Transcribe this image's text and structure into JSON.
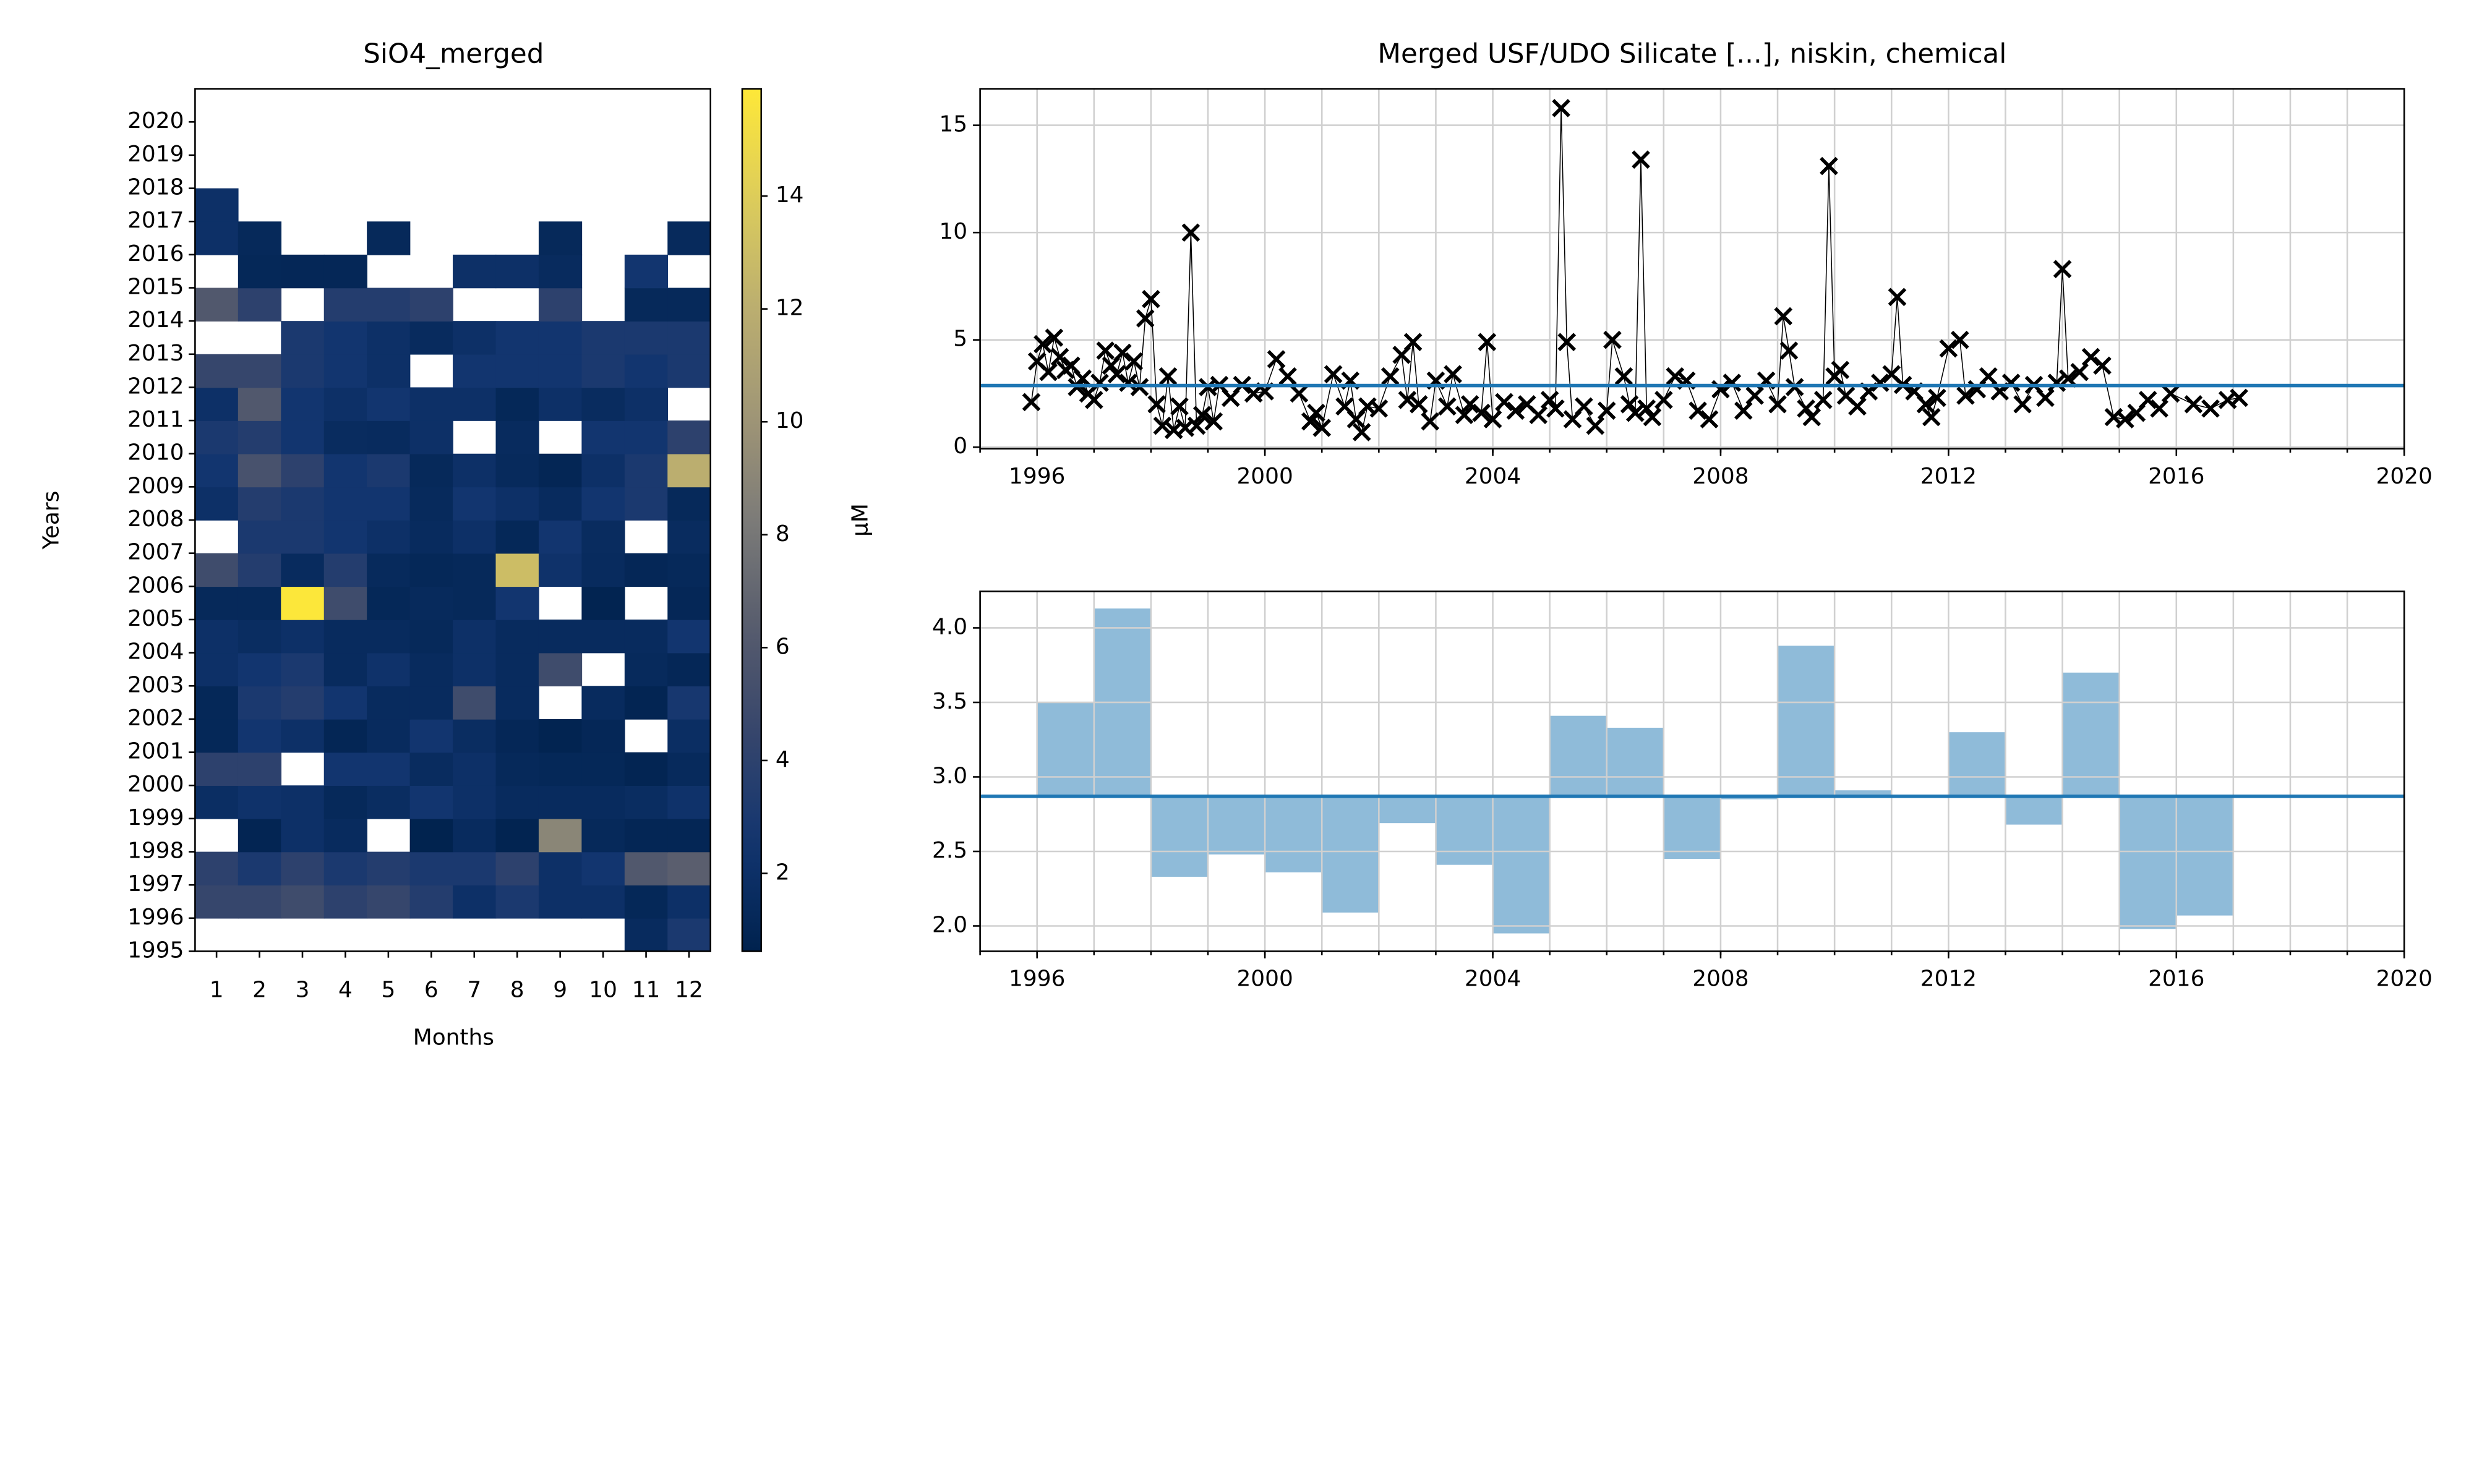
{
  "chart_data": [
    {
      "type": "heatmap",
      "title": "SiO4_merged",
      "xlabel": "Months",
      "ylabel": "Years",
      "colorbar_label": "µM",
      "colormap": "cividis",
      "x": [
        1,
        2,
        3,
        4,
        5,
        6,
        7,
        8,
        9,
        10,
        11,
        12
      ],
      "y": [
        1995,
        1996,
        1997,
        1998,
        1999,
        2000,
        2001,
        2002,
        2003,
        2004,
        2005,
        2006,
        2007,
        2008,
        2009,
        2010,
        2011,
        2012,
        2013,
        2014,
        2015,
        2016,
        2017,
        2018,
        2019,
        2020
      ],
      "values": [
        [
          null,
          null,
          null,
          null,
          null,
          null,
          null,
          null,
          null,
          null,
          1.5,
          3
        ],
        [
          4.5,
          4.5,
          5,
          4,
          4.5,
          3.5,
          2,
          3,
          2,
          2,
          1.2,
          2
        ],
        [
          4,
          3,
          4,
          3,
          3.5,
          3,
          3,
          4,
          2,
          2.5,
          6,
          6.5
        ],
        [
          null,
          0.9,
          2,
          1.5,
          null,
          0.7,
          1.5,
          0.8,
          9,
          1.3,
          1,
          1
        ],
        [
          1.8,
          2.2,
          2,
          1.3,
          1.7,
          2.5,
          2,
          1.5,
          1.5,
          1.5,
          1.7,
          2.2
        ],
        [
          4,
          4,
          null,
          2.5,
          2.5,
          1.6,
          2,
          1.3,
          1.2,
          1.2,
          0.9,
          1.4
        ],
        [
          1.2,
          2.5,
          2,
          1,
          1.5,
          2.5,
          1.7,
          1.1,
          0.8,
          1.1,
          null,
          1.8
        ],
        [
          1.2,
          3,
          3.5,
          2.5,
          1.5,
          1.5,
          5,
          1.5,
          null,
          1.5,
          0.9,
          2.8
        ],
        [
          2,
          2.5,
          3,
          1.5,
          2.2,
          1.5,
          2,
          1.5,
          5,
          null,
          1.4,
          1.1
        ],
        [
          2,
          1.7,
          2,
          1.5,
          1.5,
          1.3,
          2,
          1.5,
          1.5,
          1.5,
          1.5,
          2.5
        ],
        [
          1.3,
          1.3,
          15.8,
          5,
          1.2,
          1.4,
          1.3,
          2.5,
          null,
          0.8,
          null,
          1.1
        ],
        [
          5,
          3.5,
          1.5,
          3.5,
          1.4,
          1.2,
          1.3,
          13,
          2.2,
          1.5,
          1.1,
          1.3
        ],
        [
          null,
          3,
          3,
          2.5,
          2,
          1.5,
          2,
          1.2,
          2.5,
          1.6,
          null,
          1.6
        ],
        [
          2,
          3.5,
          3,
          2.5,
          2.5,
          1.4,
          2.5,
          2,
          1.5,
          2.5,
          3,
          1.3
        ],
        [
          2.5,
          5.5,
          4,
          2.5,
          3,
          1.3,
          2,
          1.4,
          1,
          2,
          3,
          12
        ],
        [
          3,
          3.5,
          2.5,
          1.6,
          1.5,
          2,
          null,
          1.5,
          null,
          2.5,
          2.5,
          4
        ],
        [
          2,
          6,
          2.5,
          2,
          2.5,
          2,
          2,
          1.2,
          2,
          1.6,
          2,
          null
        ],
        [
          4.5,
          4.5,
          3,
          2.5,
          2,
          null,
          2.5,
          2.5,
          2.5,
          3,
          2.5,
          3
        ],
        [
          null,
          null,
          3,
          2.5,
          2,
          1.5,
          2,
          2.5,
          2.5,
          3,
          3,
          3
        ],
        [
          6,
          4,
          null,
          3.5,
          3.5,
          4,
          null,
          null,
          4,
          null,
          1.3,
          1.3
        ],
        [
          null,
          1.2,
          1.1,
          1.1,
          null,
          null,
          2,
          2,
          1.5,
          null,
          2.5,
          null
        ],
        [
          2,
          1.3,
          null,
          null,
          1.3,
          null,
          null,
          null,
          1.3,
          null,
          null,
          1.4
        ],
        [
          2,
          null,
          null,
          null,
          null,
          null,
          null,
          null,
          null,
          null,
          null,
          null
        ],
        [
          null,
          null,
          null,
          null,
          null,
          null,
          null,
          null,
          null,
          null,
          null,
          null
        ],
        [
          null,
          null,
          null,
          null,
          null,
          null,
          null,
          null,
          null,
          null,
          null,
          null
        ],
        [
          null,
          null,
          null,
          null,
          null,
          null,
          null,
          null,
          null,
          null,
          null,
          null
        ]
      ],
      "xlim": [
        0.5,
        12.5
      ],
      "xticks": [
        1,
        2,
        3,
        4,
        5,
        6,
        7,
        8,
        9,
        10,
        11,
        12
      ],
      "ylim": [
        1995,
        2021
      ],
      "yticks": [
        1995,
        1996,
        1997,
        1998,
        1999,
        2000,
        2001,
        2002,
        2003,
        2004,
        2005,
        2006,
        2007,
        2008,
        2009,
        2010,
        2011,
        2012,
        2013,
        2014,
        2015,
        2016,
        2017,
        2018,
        2019,
        2020
      ],
      "clim": [
        0.62,
        15.9
      ],
      "cticks": [
        2,
        4,
        6,
        8,
        10,
        12,
        14
      ]
    },
    {
      "type": "line",
      "title": "Merged USF/UDO Silicate [...], niskin, chemical",
      "x": [
        1995.9,
        1996.0,
        1996.1,
        1996.2,
        1996.3,
        1996.4,
        1996.5,
        1996.6,
        1996.7,
        1996.8,
        1996.9,
        1997.0,
        1997.1,
        1997.2,
        1997.3,
        1997.4,
        1997.5,
        1997.6,
        1997.7,
        1997.8,
        1997.9,
        1998.0,
        1998.1,
        1998.2,
        1998.3,
        1998.4,
        1998.5,
        1998.6,
        1998.7,
        1998.8,
        1998.9,
        1999.0,
        1999.1,
        1999.2,
        1999.4,
        1999.6,
        1999.8,
        2000.0,
        2000.2,
        2000.4,
        2000.6,
        2000.8,
        2000.9,
        2001.0,
        2001.2,
        2001.4,
        2001.5,
        2001.6,
        2001.7,
        2001.8,
        2002.0,
        2002.2,
        2002.4,
        2002.5,
        2002.6,
        2002.7,
        2002.9,
        2003.0,
        2003.2,
        2003.3,
        2003.5,
        2003.6,
        2003.8,
        2003.9,
        2004.0,
        2004.2,
        2004.4,
        2004.6,
        2004.8,
        2005.0,
        2005.1,
        2005.2,
        2005.3,
        2005.4,
        2005.6,
        2005.8,
        2006.0,
        2006.1,
        2006.3,
        2006.4,
        2006.5,
        2006.6,
        2006.7,
        2006.8,
        2007.0,
        2007.2,
        2007.4,
        2007.6,
        2007.8,
        2008.0,
        2008.2,
        2008.4,
        2008.6,
        2008.8,
        2009.0,
        2009.1,
        2009.2,
        2009.3,
        2009.5,
        2009.6,
        2009.8,
        2009.9,
        2010.0,
        2010.1,
        2010.2,
        2010.4,
        2010.6,
        2010.8,
        2011.0,
        2011.1,
        2011.2,
        2011.4,
        2011.6,
        2011.7,
        2011.8,
        2012.0,
        2012.2,
        2012.3,
        2012.5,
        2012.7,
        2012.9,
        2013.1,
        2013.3,
        2013.5,
        2013.7,
        2013.9,
        2014.0,
        2014.1,
        2014.3,
        2014.5,
        2014.7,
        2014.9,
        2015.1,
        2015.3,
        2015.5,
        2015.7,
        2015.9,
        2016.3,
        2016.6,
        2016.9,
        2017.1
      ],
      "series": [
        {
          "color": "#000000",
          "values": [
            2.1,
            4.0,
            4.8,
            3.5,
            5.1,
            4.2,
            3.6,
            3.8,
            2.8,
            3.2,
            2.5,
            2.2,
            3.0,
            4.5,
            3.8,
            3.4,
            4.4,
            3.0,
            4.0,
            2.8,
            6.0,
            6.9,
            2.0,
            1.0,
            3.3,
            0.8,
            1.9,
            0.9,
            10.0,
            1.0,
            1.5,
            2.8,
            1.2,
            2.9,
            2.3,
            2.9,
            2.5,
            2.6,
            4.1,
            3.3,
            2.5,
            1.2,
            1.6,
            0.9,
            3.4,
            1.9,
            3.1,
            1.3,
            0.7,
            1.9,
            1.8,
            3.3,
            4.3,
            2.2,
            4.9,
            2.0,
            1.2,
            3.1,
            1.9,
            3.4,
            1.5,
            2.0,
            1.6,
            4.9,
            1.3,
            2.1,
            1.7,
            2.0,
            1.5,
            2.2,
            1.8,
            15.8,
            4.9,
            1.3,
            1.9,
            1.0,
            1.7,
            5.0,
            3.3,
            2.0,
            1.6,
            13.4,
            1.8,
            1.4,
            2.2,
            3.3,
            3.1,
            1.7,
            1.3,
            2.7,
            3.0,
            1.7,
            2.4,
            3.1,
            2.0,
            6.1,
            4.5,
            2.8,
            1.8,
            1.4,
            2.2,
            13.1,
            3.3,
            3.6,
            2.4,
            1.9,
            2.6,
            3.0,
            3.4,
            7.0,
            2.9,
            2.6,
            2.0,
            1.4,
            2.3,
            4.6,
            5.0,
            2.4,
            2.7,
            3.3,
            2.6,
            3.0,
            2.0,
            2.9,
            2.3,
            3.0,
            8.3,
            3.2,
            3.5,
            4.2,
            3.8,
            1.4,
            1.3,
            1.6,
            2.2,
            1.8,
            2.5,
            2.0,
            1.8,
            2.2,
            2.3
          ]
        }
      ],
      "mean": 2.87,
      "mean_color": "#1f77b4",
      "xlim": [
        1995,
        2020
      ],
      "xticks": [
        1996,
        2000,
        2004,
        2008,
        2012,
        2016,
        2020
      ],
      "xminorticks": [
        1995,
        1996,
        1997,
        1998,
        1999,
        2000,
        2001,
        2002,
        2003,
        2004,
        2005,
        2006,
        2007,
        2008,
        2009,
        2010,
        2011,
        2012,
        2013,
        2014,
        2015,
        2016,
        2017,
        2018,
        2019,
        2020
      ],
      "ylim": [
        -0.07,
        16.7
      ],
      "yticks": [
        0,
        5,
        10,
        15
      ],
      "grid": true
    },
    {
      "type": "bar",
      "x": [
        1996,
        1997,
        1998,
        1999,
        2000,
        2001,
        2002,
        2003,
        2004,
        2005,
        2006,
        2007,
        2008,
        2009,
        2010,
        2011,
        2012,
        2013,
        2014,
        2015,
        2016
      ],
      "values": [
        3.5,
        4.13,
        2.33,
        2.48,
        2.36,
        2.09,
        2.69,
        2.41,
        1.95,
        3.41,
        3.33,
        2.45,
        2.85,
        3.88,
        2.91,
        2.88,
        3.3,
        2.68,
        3.7,
        1.98,
        2.07
      ],
      "mean": 2.87,
      "color": "#8fbbd9",
      "mean_color": "#1f77b4",
      "xlim": [
        1995,
        2020
      ],
      "xticks": [
        1996,
        2000,
        2004,
        2008,
        2012,
        2016,
        2020
      ],
      "xminorticks": [
        1995,
        1996,
        1997,
        1998,
        1999,
        2000,
        2001,
        2002,
        2003,
        2004,
        2005,
        2006,
        2007,
        2008,
        2009,
        2010,
        2011,
        2012,
        2013,
        2014,
        2015,
        2016,
        2017,
        2018,
        2019,
        2020
      ],
      "ylim": [
        1.83,
        4.245
      ],
      "yticks": [
        {
          "value": 2,
          "label": "2.0"
        },
        {
          "value": 2.5,
          "label": "2.5"
        },
        {
          "value": 3,
          "label": "3.0"
        },
        {
          "value": 3.5,
          "label": "3.5"
        },
        {
          "value": 4,
          "label": "4.0"
        }
      ],
      "grid": true
    }
  ]
}
